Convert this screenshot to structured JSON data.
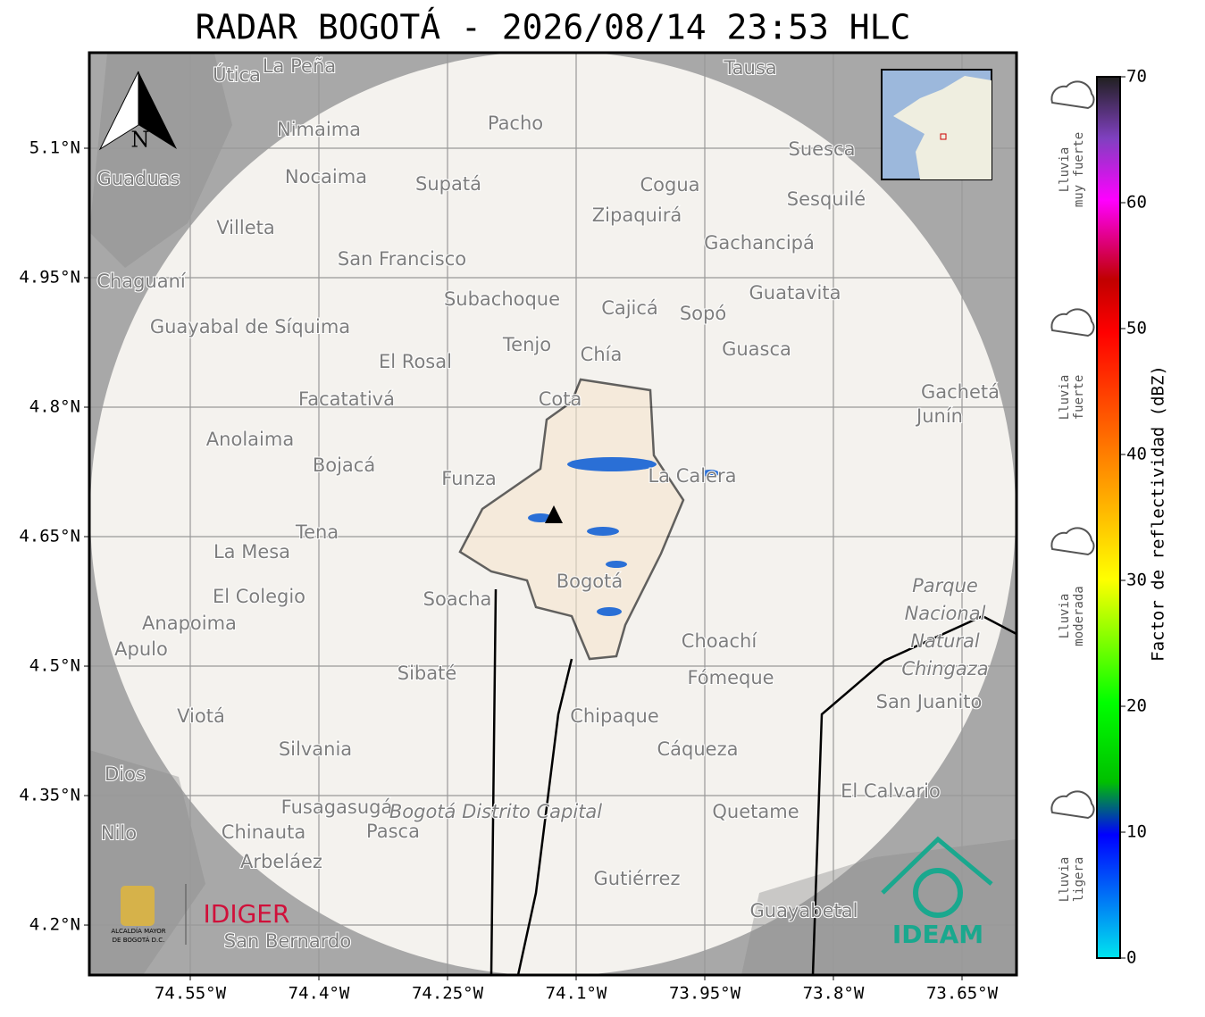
{
  "title": "RADAR BOGOTÁ - 2026/08/14 23:53 HLC",
  "north_label": "N",
  "lat_ticks": [
    {
      "value": 5.1,
      "label": "5.1°N"
    },
    {
      "value": 4.95,
      "label": "4.95°N"
    },
    {
      "value": 4.8,
      "label": "4.8°N"
    },
    {
      "value": 4.65,
      "label": "4.65°N"
    },
    {
      "value": 4.5,
      "label": "4.5°N"
    },
    {
      "value": 4.35,
      "label": "4.35°N"
    },
    {
      "value": 4.2,
      "label": "4.2°N"
    }
  ],
  "lon_ticks": [
    {
      "value": -74.55,
      "label": "74.55°W"
    },
    {
      "value": -74.4,
      "label": "74.4°W"
    },
    {
      "value": -74.25,
      "label": "74.25°W"
    },
    {
      "value": -74.1,
      "label": "74.1°W"
    },
    {
      "value": -73.95,
      "label": "73.95°W"
    },
    {
      "value": -73.8,
      "label": "73.8°W"
    },
    {
      "value": -73.65,
      "label": "73.65°W"
    }
  ],
  "places": [
    "La Peña",
    "Útica",
    "Tausa",
    "Pacho",
    "Nimaima",
    "Suesca",
    "Guaduas",
    "Nocaima",
    "Supatá",
    "Cogua",
    "Sesquilé",
    "Zipaquirá",
    "Villeta",
    "Gachancipá",
    "San Francisco",
    "Chaguaní",
    "Guatavita",
    "Subachoque",
    "Cajicá",
    "Sopó",
    "Guayabal de Síquima",
    "Tenjo",
    "Chía",
    "Guasca",
    "El Rosal",
    "Facatativá",
    "Cota",
    "Gachetá",
    "Junín",
    "Anolaima",
    "Bojacá",
    "Funza",
    "La Calera",
    "Tena",
    "La Mesa",
    "Bogotá",
    "El Colegio",
    "Soacha",
    "Anapoima",
    "Apulo",
    "Choachí",
    "Sibaté",
    "Fómeque",
    "San Juanito",
    "Chipaque",
    "Viotá",
    "Silvania",
    "Cáqueza",
    "Dios",
    "El Calvario",
    "Fusagasugá",
    "Quetame",
    "Nilo",
    "Chinauta",
    "Pasca",
    "Arbeláez",
    "Gutiérrez",
    "Guayabetal",
    "San Bernardo"
  ],
  "park": [
    "Parque",
    "Nacional",
    "Natural",
    "Chingaza"
  ],
  "district": "Bogotá Distrito Capital",
  "colorbar": {
    "label": "Factor de reflectividad (dBZ)",
    "lim": [
      0,
      70
    ],
    "ticks": [
      0,
      10,
      20,
      30,
      40,
      50,
      60,
      70
    ]
  },
  "rain_classes": [
    {
      "lines": [
        "Lluvia",
        "muy fuerte"
      ]
    },
    {
      "lines": [
        "Lluvia",
        "fuerte"
      ]
    },
    {
      "lines": [
        "Lluvia",
        "moderada"
      ]
    },
    {
      "lines": [
        "Lluvia",
        "ligera"
      ]
    }
  ],
  "logos": {
    "alcaldia": [
      "ALCALDÍA MAYOR",
      "DE BOGOTÁ D.C."
    ],
    "idiger": "IDIGER",
    "ideam": "IDEAM"
  }
}
